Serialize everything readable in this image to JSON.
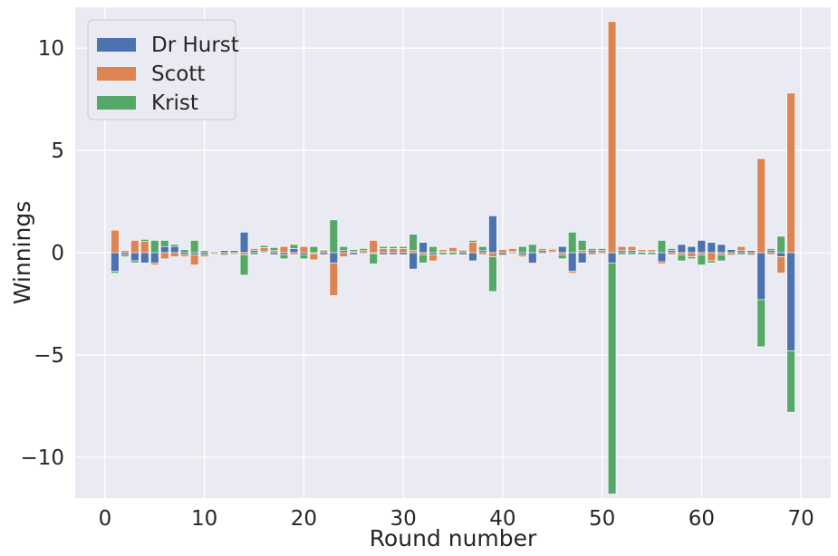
{
  "chart_data": {
    "type": "bar",
    "stacked": true,
    "title": "",
    "xlabel": "Round number",
    "ylabel": "Winnings",
    "xlim": [
      -3,
      73
    ],
    "ylim": [
      -12,
      12
    ],
    "xticks": [
      0,
      10,
      20,
      30,
      40,
      50,
      60,
      70
    ],
    "yticks": [
      -10,
      -5,
      0,
      5,
      10
    ],
    "ytick_labels": [
      "−10",
      "−5",
      "0",
      "5",
      "10"
    ],
    "grid": true,
    "legend_position": "top-left",
    "background_color": "#EAEAF2",
    "grid_color": "#FFFFFF",
    "x": [
      1,
      2,
      3,
      4,
      5,
      6,
      7,
      8,
      9,
      10,
      11,
      12,
      13,
      14,
      15,
      16,
      17,
      18,
      19,
      20,
      21,
      22,
      23,
      24,
      25,
      26,
      27,
      28,
      29,
      30,
      31,
      32,
      33,
      34,
      35,
      36,
      37,
      38,
      39,
      40,
      41,
      42,
      43,
      44,
      45,
      46,
      47,
      48,
      49,
      50,
      51,
      52,
      53,
      54,
      55,
      56,
      57,
      58,
      59,
      60,
      61,
      62,
      63,
      64,
      65,
      66,
      67,
      68,
      69
    ],
    "series": [
      {
        "name": "Dr Hurst",
        "color": "#4C72B0",
        "values": [
          -0.9,
          -0.1,
          -0.4,
          -0.5,
          -0.5,
          0.3,
          0.3,
          -0.1,
          -0.1,
          -0.1,
          -0.05,
          0.1,
          0.1,
          1.0,
          0.1,
          0.05,
          -0.1,
          -0.1,
          0.2,
          -0.1,
          -0.05,
          -0.1,
          -0.5,
          0.1,
          -0.1,
          -0.05,
          -0.05,
          -0.1,
          -0.1,
          -0.1,
          -0.8,
          0.5,
          -0.1,
          0.05,
          0.05,
          -0.1,
          -0.4,
          0.1,
          1.8,
          -0.1,
          0.05,
          -0.1,
          -0.5,
          0.1,
          0.05,
          0.3,
          -0.9,
          -0.5,
          0.1,
          -0.05,
          -0.5,
          0.1,
          0.1,
          0.05,
          0.05,
          -0.45,
          0.1,
          0.4,
          0.3,
          0.6,
          0.5,
          0.4,
          0.15,
          0.1,
          0.1,
          -2.3,
          0.1,
          -0.2,
          -4.8
        ]
      },
      {
        "name": "Scott",
        "color": "#DD8452",
        "values": [
          1.1,
          0.1,
          0.6,
          0.55,
          -0.1,
          -0.3,
          -0.2,
          -0.1,
          -0.5,
          -0.1,
          -0.05,
          -0.1,
          -0.05,
          -0.1,
          0.1,
          0.2,
          0.1,
          0.3,
          -0.1,
          0.3,
          -0.3,
          0.1,
          -1.6,
          -0.2,
          0.05,
          0.1,
          0.6,
          0.2,
          0.2,
          0.2,
          0.1,
          -0.1,
          -0.3,
          0.1,
          0.2,
          0.1,
          0.5,
          -0.1,
          -0.2,
          0.15,
          0.15,
          -0.1,
          -0.05,
          0.1,
          0.1,
          -0.1,
          -0.1,
          0.1,
          -0.1,
          0.1,
          11.3,
          0.2,
          0.2,
          0.1,
          0.1,
          -0.1,
          -0.1,
          -0.1,
          -0.2,
          -0.1,
          -0.4,
          -0.1,
          -0.1,
          0.2,
          -0.1,
          4.6,
          -0.1,
          -0.8,
          7.8
        ]
      },
      {
        "name": "Krist",
        "color": "#55A868",
        "values": [
          -0.1,
          -0.1,
          -0.1,
          0.1,
          0.6,
          0.3,
          0.1,
          0.15,
          0.6,
          0.1,
          0.05,
          -0.05,
          -0.05,
          -1.0,
          -0.1,
          0.1,
          0.15,
          -0.2,
          0.2,
          -0.2,
          0.3,
          0.05,
          1.6,
          0.2,
          0.1,
          0.1,
          -0.5,
          0.1,
          0.1,
          0.1,
          0.8,
          -0.4,
          0.3,
          -0.1,
          -0.1,
          0.05,
          0.1,
          0.2,
          -1.7,
          -0.05,
          -0.05,
          0.3,
          0.4,
          -0.05,
          0.05,
          -0.2,
          1.0,
          0.5,
          0.1,
          0.1,
          -11.3,
          -0.1,
          -0.1,
          -0.1,
          -0.1,
          0.6,
          0.1,
          -0.3,
          -0.1,
          -0.5,
          -0.1,
          -0.3,
          -0.05,
          -0.1,
          -0.05,
          -2.3,
          0.1,
          0.8,
          -3.0
        ]
      }
    ]
  }
}
